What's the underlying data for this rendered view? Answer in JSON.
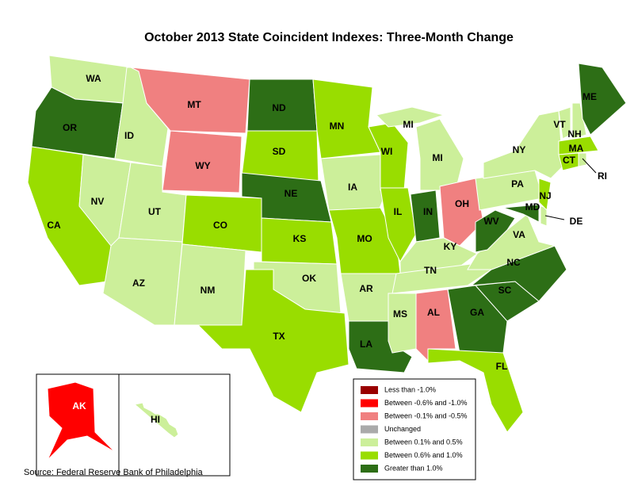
{
  "title": "October 2013 State Coincident Indexes: Three-Month Change",
  "source": "Source: Federal Reserve Bank of Philadelphia",
  "legend": [
    {
      "label": "Less than -1.0%",
      "color": "#990000"
    },
    {
      "label": "Between -0.6% and -1.0%",
      "color": "#ff0000"
    },
    {
      "label": "Between -0.1% and -0.5%",
      "color": "#f08080"
    },
    {
      "label": "Unchanged",
      "color": "#aaaaaa"
    },
    {
      "label": "Between 0.1% and 0.5%",
      "color": "#ccef9a"
    },
    {
      "label": "Between 0.6% and 1.0%",
      "color": "#99dd00"
    },
    {
      "label": "Greater than 1.0%",
      "color": "#2d6e16"
    }
  ],
  "states": [
    {
      "label": "WA",
      "color": "#ccef9a"
    },
    {
      "label": "OR",
      "color": "#2d6e16"
    },
    {
      "label": "CA",
      "color": "#99dd00"
    },
    {
      "label": "NV",
      "color": "#ccef9a"
    },
    {
      "label": "ID",
      "color": "#ccef9a"
    },
    {
      "label": "MT",
      "color": "#f08080"
    },
    {
      "label": "WY",
      "color": "#f08080"
    },
    {
      "label": "UT",
      "color": "#ccef9a"
    },
    {
      "label": "AZ",
      "color": "#ccef9a"
    },
    {
      "label": "CO",
      "color": "#99dd00"
    },
    {
      "label": "NM",
      "color": "#ccef9a"
    },
    {
      "label": "ND",
      "color": "#2d6e16"
    },
    {
      "label": "SD",
      "color": "#99dd00"
    },
    {
      "label": "NE",
      "color": "#2d6e16"
    },
    {
      "label": "KS",
      "color": "#99dd00"
    },
    {
      "label": "OK",
      "color": "#ccef9a"
    },
    {
      "label": "TX",
      "color": "#99dd00"
    },
    {
      "label": "MN",
      "color": "#99dd00"
    },
    {
      "label": "IA",
      "color": "#ccef9a"
    },
    {
      "label": "MO",
      "color": "#99dd00"
    },
    {
      "label": "AR",
      "color": "#ccef9a"
    },
    {
      "label": "LA",
      "color": "#2d6e16"
    },
    {
      "label": "WI",
      "color": "#99dd00"
    },
    {
      "label": "IL",
      "color": "#99dd00"
    },
    {
      "label": "MI",
      "color": "#ccef9a"
    },
    {
      "label": "MI",
      "color": "#ccef9a"
    },
    {
      "label": "IN",
      "color": "#2d6e16"
    },
    {
      "label": "OH",
      "color": "#f08080"
    },
    {
      "label": "KY",
      "color": "#ccef9a"
    },
    {
      "label": "TN",
      "color": "#ccef9a"
    },
    {
      "label": "MS",
      "color": "#ccef9a"
    },
    {
      "label": "AL",
      "color": "#f08080"
    },
    {
      "label": "GA",
      "color": "#2d6e16"
    },
    {
      "label": "FL",
      "color": "#99dd00"
    },
    {
      "label": "SC",
      "color": "#2d6e16"
    },
    {
      "label": "NC",
      "color": "#2d6e16"
    },
    {
      "label": "VA",
      "color": "#ccef9a"
    },
    {
      "label": "WV",
      "color": "#2d6e16"
    },
    {
      "label": "MD",
      "color": "#2d6e16"
    },
    {
      "label": "DE",
      "color": "#ccef9a"
    },
    {
      "label": "PA",
      "color": "#ccef9a"
    },
    {
      "label": "NJ",
      "color": "#99dd00"
    },
    {
      "label": "NY",
      "color": "#ccef9a"
    },
    {
      "label": "VT",
      "color": "#ccef9a"
    },
    {
      "label": "NH",
      "color": "#ccef9a"
    },
    {
      "label": "ME",
      "color": "#2d6e16"
    },
    {
      "label": "MA",
      "color": "#99dd00"
    },
    {
      "label": "CT",
      "color": "#99dd00"
    },
    {
      "label": "RI",
      "color": "#ccef9a"
    },
    {
      "label": "AK",
      "color": "#ff0000"
    },
    {
      "label": "HI",
      "color": "#ccef9a"
    }
  ]
}
